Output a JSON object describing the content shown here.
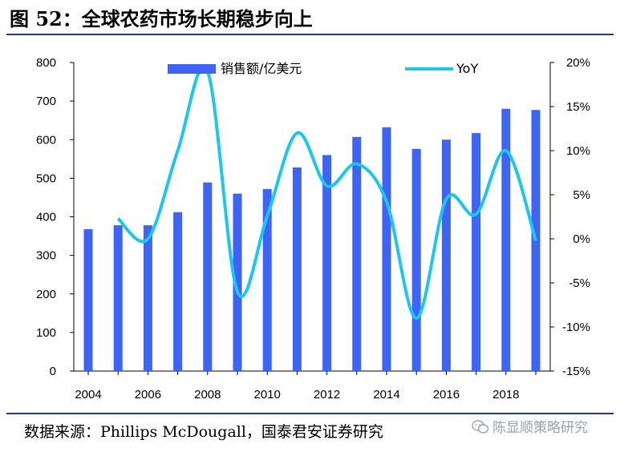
{
  "figure": {
    "title": "图 52：全球农药市场长期稳步向上",
    "source": "数据来源：Phillips McDougall，国泰君安证券研究",
    "watermark": "陈显顺策略研究",
    "watermark_icon": "wechat-icon"
  },
  "colors": {
    "bar": "#3d64f4",
    "line": "#1cc7ef",
    "rule": "#1f3a8a"
  },
  "chart_data": {
    "type": "bar",
    "title": "",
    "x": [
      2004,
      2005,
      2006,
      2007,
      2008,
      2009,
      2010,
      2011,
      2012,
      2013,
      2014,
      2015,
      2016,
      2017,
      2018,
      2019
    ],
    "x_tick_labels": [
      "2004",
      "2006",
      "2008",
      "2010",
      "2012",
      "2014",
      "2016",
      "2018"
    ],
    "series": [
      {
        "name": "销售额/亿美元",
        "type": "bar",
        "axis": "left",
        "values": [
          368,
          378,
          378,
          412,
          489,
          460,
          472,
          528,
          560,
          607,
          632,
          576,
          600,
          617,
          680,
          677
        ]
      },
      {
        "name": "YoY",
        "type": "line",
        "axis": "right",
        "unit": "%",
        "values": [
          null,
          2.3,
          0.0,
          10.0,
          19.0,
          -6.0,
          2.6,
          12.0,
          6.0,
          8.5,
          4.2,
          -9.0,
          4.5,
          2.8,
          10.0,
          -0.2
        ]
      }
    ],
    "y_left": {
      "ylim": [
        0,
        800
      ],
      "ticks": [
        0,
        100,
        200,
        300,
        400,
        500,
        600,
        700,
        800
      ]
    },
    "y_right": {
      "ylim": [
        -15,
        20
      ],
      "ticks": [
        -15,
        -10,
        -5,
        0,
        5,
        10,
        15,
        20
      ],
      "tick_labels": [
        "-15%",
        "-10%",
        "-5%",
        "0%",
        "5%",
        "10%",
        "15%",
        "20%"
      ]
    },
    "legend": {
      "placement": "top",
      "entries": [
        "销售额/亿美元",
        "YoY"
      ]
    },
    "grid": false
  }
}
